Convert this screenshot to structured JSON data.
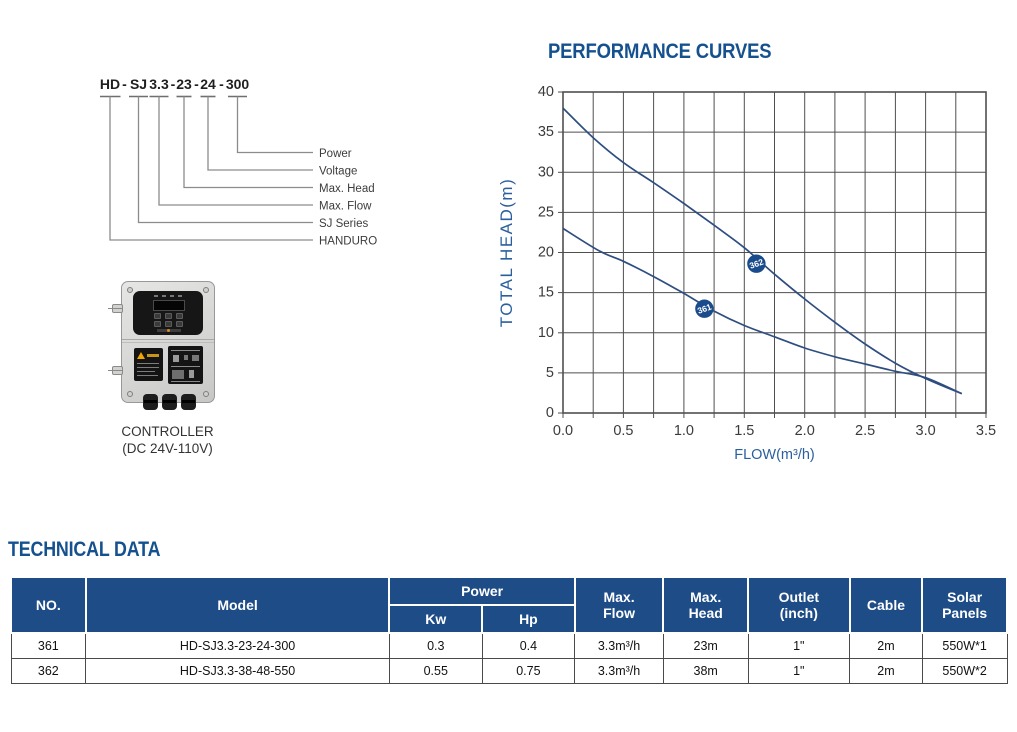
{
  "model_key": {
    "separator": "-",
    "segments": [
      {
        "text": "HD",
        "label": "HANDURO"
      },
      {
        "text": "SJ",
        "label": "SJ Series"
      },
      {
        "text": "3.3",
        "label": "Max. Flow"
      },
      {
        "text": "23",
        "label": "Max. Head"
      },
      {
        "text": "24",
        "label": "Voltage"
      },
      {
        "text": "300",
        "label": "Power"
      }
    ]
  },
  "controller": {
    "caption_line1": "CONTROLLER",
    "caption_line2": "(DC 24V-110V)"
  },
  "chart_section_title": "PERFORMANCE CURVES",
  "technical": {
    "section_title": "TECHNICAL DATA"
  },
  "chart_data": {
    "type": "line",
    "title": "PERFORMANCE CURVES",
    "xlabel": "FLOW(m³/h)",
    "ylabel": "TOTAL HEAD(m)",
    "xlim": [
      0,
      3.5
    ],
    "ylim": [
      0,
      40
    ],
    "x_tick_step": 0.5,
    "y_tick_step": 5,
    "x_grid_step": 0.25,
    "y_grid_step": 5,
    "grid": true,
    "legend_position": "on-curve-badges",
    "series": [
      {
        "name": "362",
        "badge_at": {
          "x": 1.6,
          "y": 18.6
        },
        "points": [
          [
            0,
            38
          ],
          [
            0.25,
            34.3
          ],
          [
            0.5,
            31.2
          ],
          [
            0.75,
            28.7
          ],
          [
            1.0,
            26.1
          ],
          [
            1.25,
            23.4
          ],
          [
            1.5,
            20.6
          ],
          [
            1.75,
            17.3
          ],
          [
            2.0,
            14.2
          ],
          [
            2.25,
            11.3
          ],
          [
            2.5,
            8.6
          ],
          [
            2.75,
            6.2
          ],
          [
            3.0,
            4.3
          ],
          [
            3.3,
            2.4
          ]
        ]
      },
      {
        "name": "361",
        "badge_at": {
          "x": 1.17,
          "y": 13.0
        },
        "points": [
          [
            0,
            23
          ],
          [
            0.3,
            20.2
          ],
          [
            0.5,
            18.9
          ],
          [
            0.75,
            17.0
          ],
          [
            1.0,
            14.9
          ],
          [
            1.25,
            12.7
          ],
          [
            1.5,
            10.9
          ],
          [
            1.75,
            9.5
          ],
          [
            2.0,
            8.1
          ],
          [
            2.25,
            7.0
          ],
          [
            2.5,
            6.1
          ],
          [
            2.75,
            5.2
          ],
          [
            3.0,
            4.4
          ],
          [
            3.3,
            2.4
          ]
        ]
      }
    ]
  },
  "table": {
    "headers": {
      "no": "NO.",
      "model": "Model",
      "power": "Power",
      "kw": "Kw",
      "hp": "Hp",
      "max_flow": "Max.\nFlow",
      "max_head": "Max.\nHead",
      "outlet": "Outlet\n(inch)",
      "cable": "Cable",
      "solar_panels": "Solar\nPanels"
    },
    "rows": [
      [
        "361",
        "HD-SJ3.3-23-24-300",
        "0.3",
        "0.4",
        "3.3m³/h",
        "23m",
        "1\"",
        "2m",
        "550W*1"
      ],
      [
        "362",
        "HD-SJ3.3-38-48-550",
        "0.55",
        "0.75",
        "3.3m³/h",
        "38m",
        "1\"",
        "2m",
        "550W*2"
      ]
    ]
  },
  "colors": {
    "section_title_navy": "#15508f",
    "table_header_blue": "#1e4c87",
    "curve_blue": "#2e4d80",
    "axis_label_blue": "#2a5f9e",
    "badge_blue": "#1a4c8c",
    "grid_gray": "#4f4f4f",
    "warning_yellow": "#f0a500"
  }
}
